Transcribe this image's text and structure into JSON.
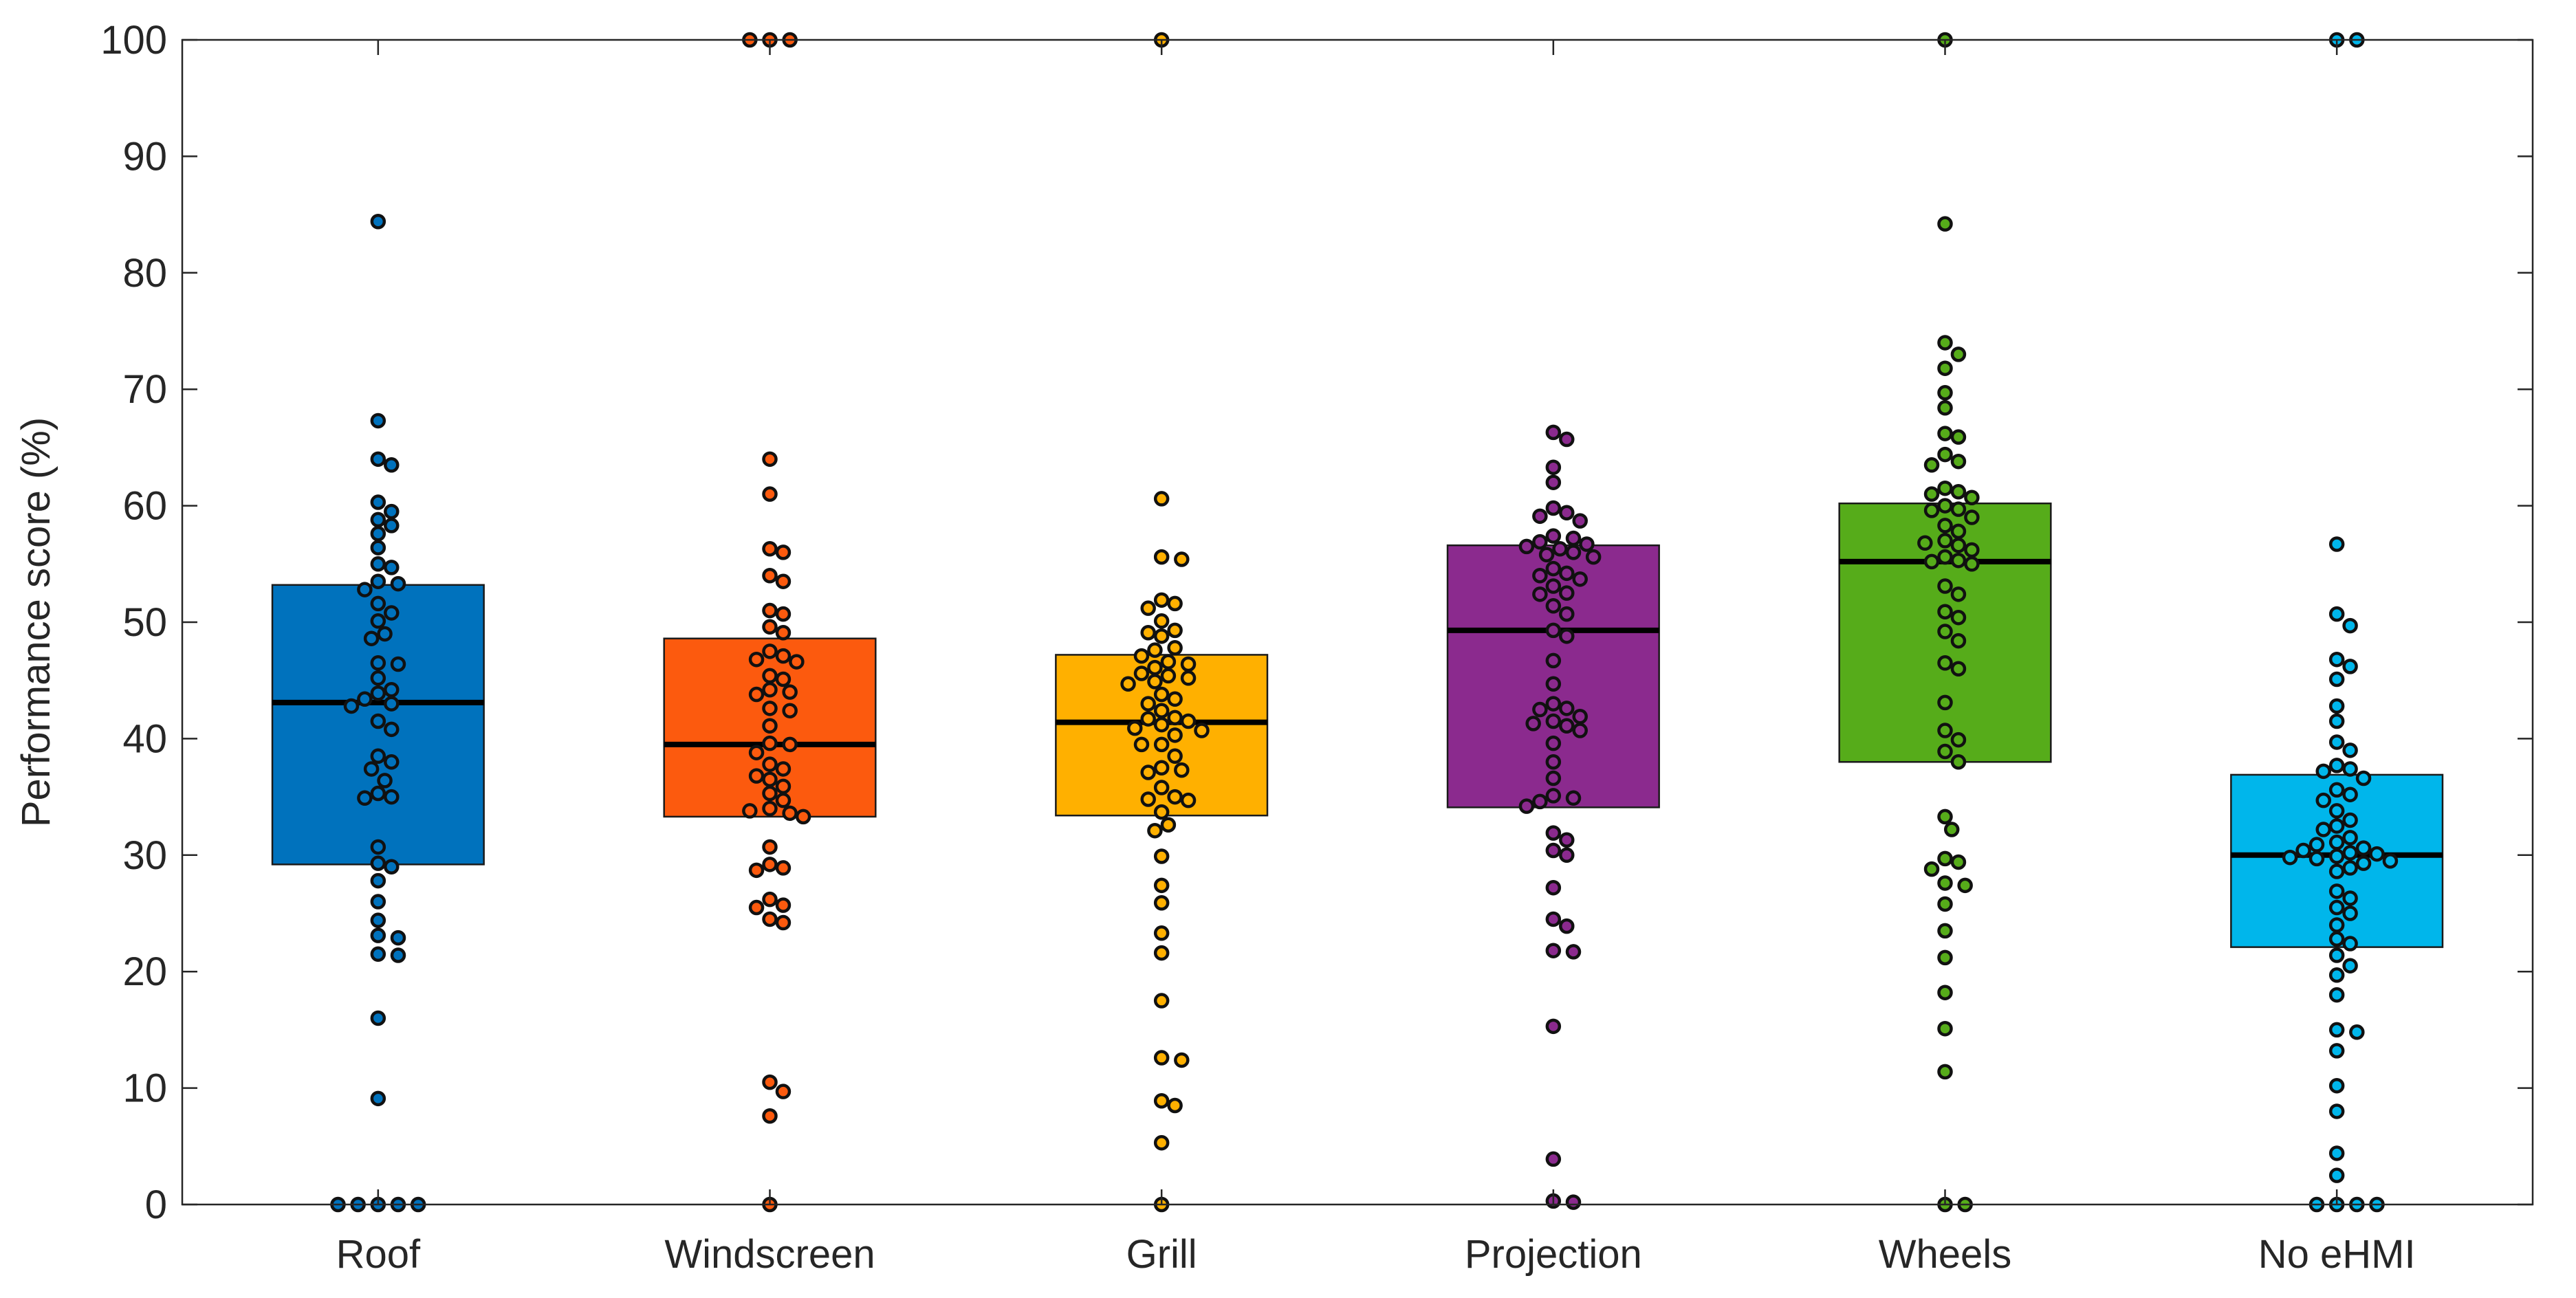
{
  "chart_data": {
    "type": "box",
    "ylabel": "Performance score (%)",
    "xlabel": "",
    "ylim": [
      0,
      100
    ],
    "yticks": [
      0,
      10,
      20,
      30,
      40,
      50,
      60,
      70,
      80,
      90,
      100
    ],
    "grid": false,
    "categories": [
      "Roof",
      "Windscreen",
      "Grill",
      "Projection",
      "Wheels",
      "No eHMI"
    ],
    "series": [
      {
        "category": "Roof",
        "color": "#0072bd",
        "q1": 29.2,
        "median": 43.1,
        "q3": 53.2,
        "points": [
          84.4,
          67.3,
          64.0,
          63.5,
          60.3,
          59.5,
          58.8,
          58.3,
          57.6,
          56.4,
          55.0,
          54.7,
          53.5,
          53.3,
          52.8,
          51.6,
          50.8,
          50.1,
          49.0,
          48.6,
          46.5,
          46.4,
          45.2,
          44.2,
          43.9,
          43.4,
          43.0,
          42.8,
          41.5,
          40.8,
          38.5,
          38.0,
          37.4,
          36.4,
          35.3,
          35.0,
          34.9,
          30.7,
          29.3,
          29.0,
          27.8,
          26.0,
          24.4,
          23.1,
          22.9,
          21.5,
          21.4,
          16.0,
          9.1,
          0,
          0,
          0,
          0,
          0
        ]
      },
      {
        "category": "Windscreen",
        "color": "#fc5a0e",
        "q1": 33.3,
        "median": 39.5,
        "q3": 48.6,
        "points": [
          100,
          100,
          100,
          64.0,
          61.0,
          56.3,
          56.0,
          54.0,
          53.5,
          51.0,
          50.7,
          49.6,
          49.1,
          47.5,
          47.1,
          46.8,
          46.6,
          45.4,
          45.1,
          44.2,
          44.0,
          43.8,
          42.6,
          42.4,
          41.1,
          39.6,
          39.5,
          38.8,
          37.8,
          37.4,
          36.8,
          36.5,
          35.9,
          35.3,
          34.7,
          34.0,
          33.8,
          33.6,
          33.3,
          30.7,
          29.2,
          28.9,
          28.7,
          26.2,
          25.7,
          25.5,
          24.5,
          24.2,
          10.5,
          9.7,
          7.6,
          0
        ]
      },
      {
        "category": "Grill",
        "color": "#ffb000",
        "q1": 33.4,
        "median": 41.4,
        "q3": 47.2,
        "points": [
          100,
          60.6,
          55.6,
          55.4,
          51.9,
          51.6,
          51.2,
          50.1,
          49.3,
          49.1,
          48.8,
          47.8,
          47.6,
          47.1,
          46.6,
          46.4,
          46.1,
          45.6,
          45.4,
          45.2,
          44.9,
          44.7,
          43.8,
          43.4,
          43.0,
          42.4,
          41.8,
          41.7,
          41.5,
          41.2,
          40.9,
          40.7,
          40.3,
          39.5,
          39.5,
          38.5,
          37.5,
          37.3,
          37.1,
          35.8,
          35.0,
          34.8,
          34.7,
          33.7,
          32.6,
          32.1,
          29.9,
          27.4,
          25.9,
          23.3,
          21.6,
          17.5,
          12.6,
          12.4,
          8.9,
          8.5,
          5.3,
          0
        ]
      },
      {
        "category": "Projection",
        "color": "#8b2a8e",
        "q1": 34.1,
        "median": 49.3,
        "q3": 56.6,
        "points": [
          66.3,
          65.7,
          63.3,
          62.0,
          59.8,
          59.4,
          59.1,
          58.7,
          57.4,
          57.2,
          56.9,
          56.7,
          56.5,
          56.3,
          56.0,
          55.8,
          55.6,
          54.6,
          54.2,
          54.0,
          53.7,
          53.1,
          52.5,
          52.4,
          51.4,
          50.7,
          49.3,
          48.8,
          46.7,
          44.7,
          43.0,
          42.6,
          42.5,
          41.9,
          41.5,
          41.3,
          41.1,
          40.7,
          39.6,
          38.0,
          36.6,
          35.1,
          34.9,
          34.6,
          34.2,
          31.9,
          31.3,
          30.4,
          30.0,
          27.2,
          24.5,
          23.9,
          21.8,
          21.7,
          15.3,
          3.9,
          0.3,
          0.2
        ]
      },
      {
        "category": "Wheels",
        "color": "#56ac1a",
        "q1": 38.0,
        "median": 55.2,
        "q3": 60.2,
        "points": [
          100,
          84.2,
          74.0,
          73.0,
          71.8,
          69.7,
          68.4,
          66.2,
          65.9,
          64.4,
          63.8,
          63.5,
          61.5,
          61.2,
          61.0,
          60.7,
          60.0,
          59.7,
          59.6,
          59.0,
          58.3,
          57.8,
          57.0,
          56.8,
          56.6,
          56.2,
          55.6,
          55.3,
          55.2,
          55.0,
          53.1,
          52.4,
          50.9,
          50.4,
          49.2,
          48.4,
          46.5,
          46.0,
          43.1,
          40.7,
          39.9,
          38.9,
          38.0,
          33.3,
          32.2,
          29.7,
          29.4,
          28.8,
          27.6,
          27.4,
          25.8,
          23.5,
          21.2,
          18.2,
          15.1,
          11.4,
          0,
          0
        ]
      },
      {
        "category": "No eHMI",
        "color": "#00b6eb",
        "q1": 22.1,
        "median": 30.0,
        "q3": 36.9,
        "points": [
          100,
          100,
          56.7,
          50.7,
          49.7,
          46.8,
          46.2,
          45.1,
          42.8,
          41.5,
          39.7,
          39.0,
          37.7,
          37.4,
          37.2,
          36.6,
          35.6,
          35.2,
          34.7,
          33.8,
          33.0,
          32.5,
          32.2,
          31.5,
          31.1,
          30.9,
          30.6,
          30.4,
          30.2,
          30.1,
          29.9,
          29.8,
          29.7,
          29.5,
          29.3,
          28.9,
          28.6,
          26.9,
          26.3,
          25.5,
          25.0,
          24.0,
          22.8,
          22.4,
          21.4,
          20.5,
          19.7,
          18.0,
          15.0,
          14.8,
          13.2,
          10.2,
          8.0,
          4.4,
          2.5,
          0,
          0,
          0,
          0
        ]
      }
    ]
  }
}
